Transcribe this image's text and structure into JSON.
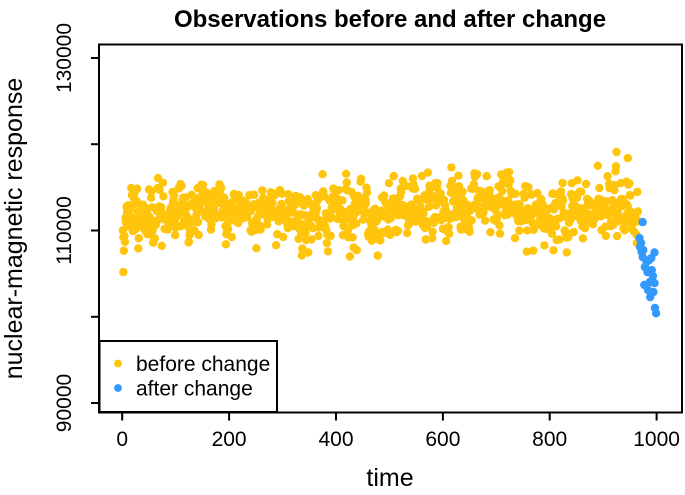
{
  "title": "Observations before and after change",
  "axes": {
    "x": {
      "label": "time",
      "min": -43.5,
      "max": 1047.5,
      "ticks": [
        0,
        200,
        400,
        600,
        800,
        1000
      ],
      "tick_labels": [
        "0",
        "200",
        "400",
        "600",
        "800",
        "1000"
      ]
    },
    "y": {
      "label": "nuclear-magnetic response",
      "min": 88900,
      "max": 131565,
      "ticks": [
        90000,
        100000,
        110000,
        120000,
        130000
      ],
      "tick_labels": [
        "90000",
        "110000",
        "130000"
      ]
    }
  },
  "legend": {
    "position": "bottomleft",
    "items": [
      {
        "label": "before change",
        "color": "#FFC40C"
      },
      {
        "label": "after change",
        "color": "#3399FF"
      }
    ]
  },
  "chart_data": {
    "type": "scatter",
    "title": "Observations before and after change",
    "xlabel": "time",
    "ylabel": "nuclear-magnetic response",
    "xlim": [
      -43.5,
      1047.5
    ],
    "ylim": [
      88900,
      131565
    ],
    "grid": false,
    "point_radius_px": 4.2,
    "series": [
      {
        "name": "before change",
        "color": "#FFC40C",
        "kind": "generated",
        "n": 966,
        "x_start": 1,
        "x_end": 966,
        "mean_profile": [
          [
            1,
            111900
          ],
          [
            120,
            112400
          ],
          [
            250,
            112300
          ],
          [
            380,
            111700
          ],
          [
            480,
            111900
          ],
          [
            600,
            113100
          ],
          [
            700,
            112450
          ],
          [
            780,
            112300
          ],
          [
            845,
            111800
          ],
          [
            900,
            112900
          ],
          [
            955,
            113500
          ],
          [
            966,
            112600
          ]
        ],
        "sd": 1600,
        "ar": 0.45,
        "dev_clamp": 4800,
        "seed": 11,
        "extra_points": [
          [
            2,
            105180
          ],
          [
            925,
            119100
          ],
          [
            946,
            118400
          ]
        ]
      },
      {
        "name": "after change",
        "color": "#3399FF",
        "kind": "explicit",
        "points": [
          [
            974,
            110970
          ],
          [
            968,
            109120
          ],
          [
            971,
            108540
          ],
          [
            969,
            108080
          ],
          [
            975,
            107730
          ],
          [
            972,
            107500
          ],
          [
            996,
            107450
          ],
          [
            974,
            106920
          ],
          [
            990,
            106800
          ],
          [
            986,
            106570
          ],
          [
            981,
            106340
          ],
          [
            978,
            105760
          ],
          [
            991,
            105410
          ],
          [
            983,
            105180
          ],
          [
            993,
            104720
          ],
          [
            987,
            104020
          ],
          [
            977,
            103680
          ],
          [
            996,
            103900
          ],
          [
            984,
            103090
          ],
          [
            994,
            102860
          ],
          [
            988,
            102280
          ],
          [
            997,
            101010
          ],
          [
            999,
            100400
          ]
        ]
      }
    ]
  }
}
